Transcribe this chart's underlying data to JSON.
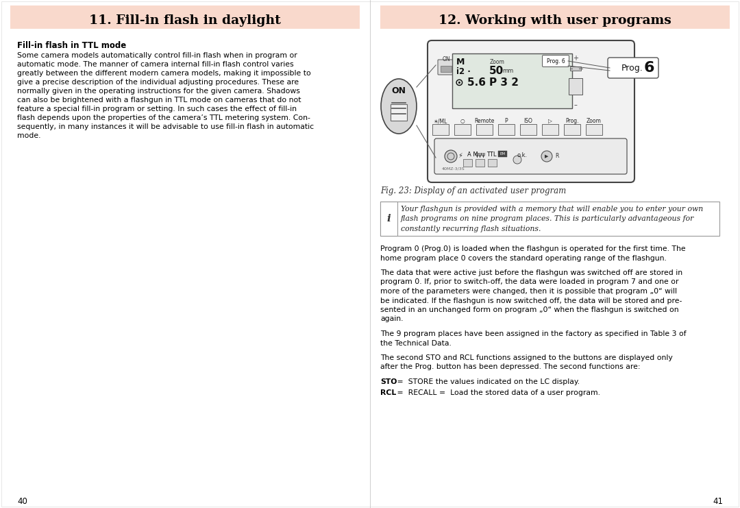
{
  "page_bg": "#ffffff",
  "left_title": "11. Fill-in flash in daylight",
  "right_title": "12. Working with user programs",
  "header_color": "#f9d9cc",
  "title_color": "#000000",
  "left_subtitle": "Fill-in flash in TTL mode",
  "left_body_lines": [
    "Some camera models automatically control fill-in flash when in program or",
    "automatic mode. The manner of camera internal fill-in flash control varies",
    "greatly between the different modern camera models, making it impossible to",
    "give a precise description of the individual adjusting procedures. These are",
    "normally given in the operating instructions for the given camera. Shadows",
    "can also be brightened with a flashgun in TTL mode on cameras that do not",
    "feature a special fill-in program or setting. In such cases the effect of fill-in",
    "flash depends upon the properties of the camera’s TTL metering system. Con-",
    "sequently, in many instances it will be advisable to use fill-in flash in automatic",
    "mode."
  ],
  "fig_caption": "Fig. 23: Display of an activated user program",
  "info_lines": [
    "Your flashgun is provided with a memory that will enable you to enter your own",
    "flash programs on nine program places. This is particularly advantageous for",
    "constantly recurring flash situations."
  ],
  "para1_lines": [
    "Program 0 (Prog.0) is loaded when the flashgun is operated for the first time. The",
    "home program place 0 covers the standard operating range of the flashgun."
  ],
  "para2_lines": [
    "The data that were active just before the flashgun was switched off are stored in",
    "program 0. If, prior to switch-off, the data were loaded in program 7 and one or",
    "more of the parameters were changed, then it is possible that program „0“ will",
    "be indicated. If the flashgun is now switched off, the data will be stored and pre-",
    "sented in an unchanged form on program „0“ when the flashgun is switched on",
    "again."
  ],
  "para3_lines": [
    "The 9 program places have been assigned in the factory as specified in Table 3 of",
    "the Technical Data."
  ],
  "para4_lines": [
    "The second STO and RCL functions assigned to the buttons are displayed only",
    "after the Prog. button has been depressed. The second functions are:"
  ],
  "sto_bold": "STO",
  "sto_rest": " =  STORE the values indicated on the LC display.",
  "rcl_bold": "RCL",
  "rcl_rest": " =  RECALL =  Load the stored data of a user program.",
  "page_left": "40",
  "page_right": "41"
}
